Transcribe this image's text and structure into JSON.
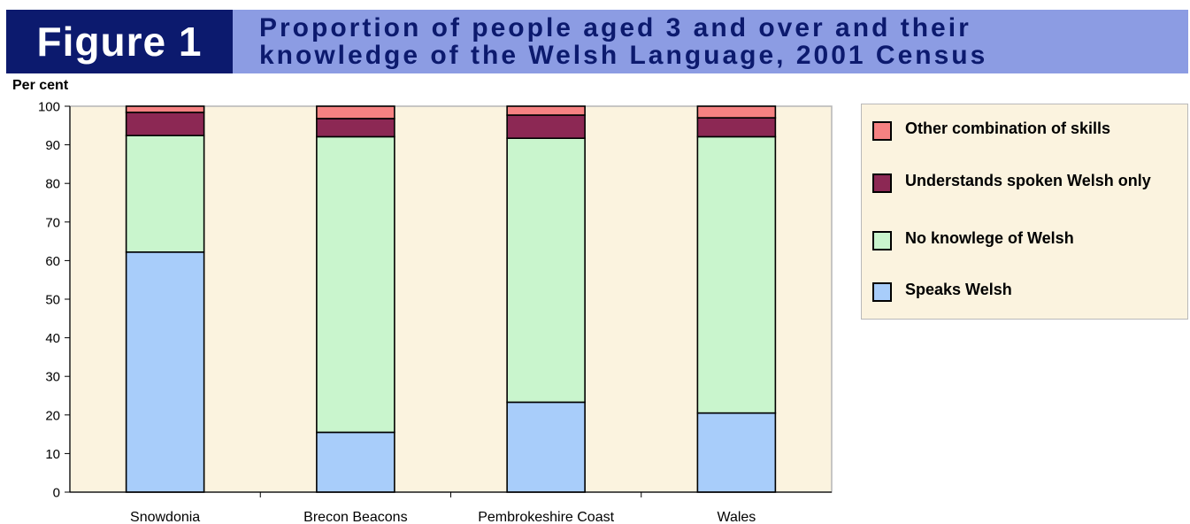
{
  "header": {
    "figure_label": "Figure 1",
    "title": "Proportion of people aged 3 and over and their\nknowledge of the Welsh Language, 2001 Census"
  },
  "colors": {
    "header_dark": "#0c1a6e",
    "header_light": "#8c9ce3",
    "plot_background": "#fbf3df",
    "speaks_welsh": "#a8cdfa",
    "no_knowledge": "#c9f5cd",
    "understands_only": "#8c2854",
    "other": "#f68282"
  },
  "chart_data": {
    "type": "bar",
    "stacked": true,
    "title": "Proportion of people aged 3 and over and their knowledge of the Welsh Language, 2001 Census",
    "ylabel": "Per cent",
    "xlabel": "",
    "ylim": [
      0,
      100
    ],
    "yticks": [
      0,
      10,
      20,
      30,
      40,
      50,
      60,
      70,
      80,
      90,
      100
    ],
    "grid": false,
    "legend_position": "right",
    "categories": [
      "Snowdonia",
      "Brecon Beacons",
      "Pembrokeshire Coast",
      "Wales"
    ],
    "series": [
      {
        "name": "Speaks Welsh",
        "values": [
          62.2,
          15.5,
          23.3,
          20.5
        ],
        "color": "#a8cdfa"
      },
      {
        "name": "No knowlege of Welsh",
        "values": [
          30.2,
          76.6,
          68.4,
          71.6
        ],
        "color": "#c9f5cd"
      },
      {
        "name": "Understands spoken Welsh only",
        "values": [
          6.0,
          4.7,
          6.0,
          4.9
        ],
        "color": "#8c2854"
      },
      {
        "name": "Other combination of skills",
        "values": [
          1.6,
          3.2,
          2.3,
          3.0
        ],
        "color": "#f68282"
      }
    ]
  },
  "legend": {
    "items": [
      {
        "label": "Other combination of skills",
        "color": "#f68282"
      },
      {
        "label": "Understands spoken Welsh only",
        "color": "#8c2854"
      },
      {
        "label": "No knowlege of Welsh",
        "color": "#c9f5cd"
      },
      {
        "label": "Speaks Welsh",
        "color": "#a8cdfa"
      }
    ]
  }
}
